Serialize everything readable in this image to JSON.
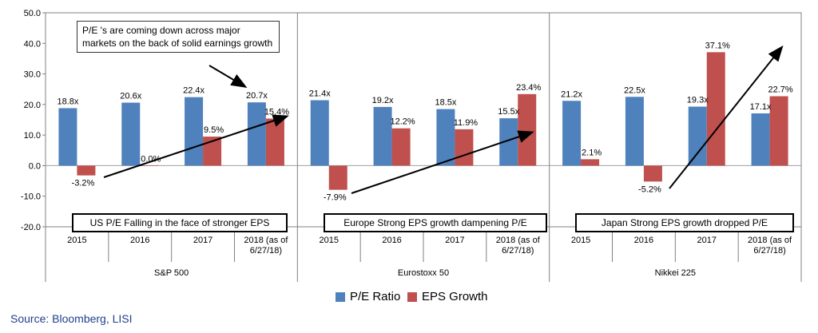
{
  "chart_data": {
    "type": "bar",
    "ylim": [
      -20,
      50
    ],
    "yticks": [
      "50.0",
      "40.0",
      "30.0",
      "20.0",
      "10.0",
      "0.0",
      "-10.0",
      "-20.0"
    ],
    "ytick_values": [
      50,
      40,
      30,
      20,
      10,
      0,
      -10,
      -20
    ],
    "panels": [
      {
        "name": "S&P 500",
        "categories": [
          "2015",
          "2016",
          "2017",
          "2018 (as of 6/27/18)"
        ],
        "pe": [
          18.8,
          20.6,
          22.4,
          20.7
        ],
        "pe_labels": [
          "18.8x",
          "20.6x",
          "22.4x",
          "20.7x"
        ],
        "eps": [
          -3.2,
          0.0,
          9.5,
          15.4
        ],
        "eps_labels": [
          "-3.2%",
          "0.0%",
          "9.5%",
          "15.4%"
        ],
        "note": "US P/E Falling in the face of stronger EPS"
      },
      {
        "name": "Eurostoxx 50",
        "categories": [
          "2015",
          "2016",
          "2017",
          "2018 (as of 6/27/18)"
        ],
        "pe": [
          21.4,
          19.2,
          18.5,
          15.5
        ],
        "pe_labels": [
          "21.4x",
          "19.2x",
          "18.5x",
          "15.5x"
        ],
        "eps": [
          -7.9,
          12.2,
          11.9,
          23.4
        ],
        "eps_labels": [
          "-7.9%",
          "12.2%",
          "11.9%",
          "23.4%"
        ],
        "note": "Europe Strong EPS growth dampening  P/E"
      },
      {
        "name": "Nikkei 225",
        "categories": [
          "2015",
          "2016",
          "2017",
          "2018 (as of 6/27/18)"
        ],
        "pe": [
          21.2,
          22.5,
          19.3,
          17.1
        ],
        "pe_labels": [
          "21.2x",
          "22.5x",
          "19.3x",
          "17.1x"
        ],
        "eps": [
          2.1,
          -5.2,
          37.1,
          22.7
        ],
        "eps_labels": [
          "2.1%",
          "-5.2%",
          "37.1%",
          "22.7%"
        ],
        "note": "Japan Strong EPS growth dropped P/E"
      }
    ],
    "series": [
      {
        "name": "P/E Ratio",
        "color": "#4F81BD"
      },
      {
        "name": "EPS Growth",
        "color": "#C0504D"
      }
    ],
    "callout": "P/E 's are coming down across major markets on the back of solid earnings growth"
  },
  "source": "Source: Bloomberg, LISI"
}
